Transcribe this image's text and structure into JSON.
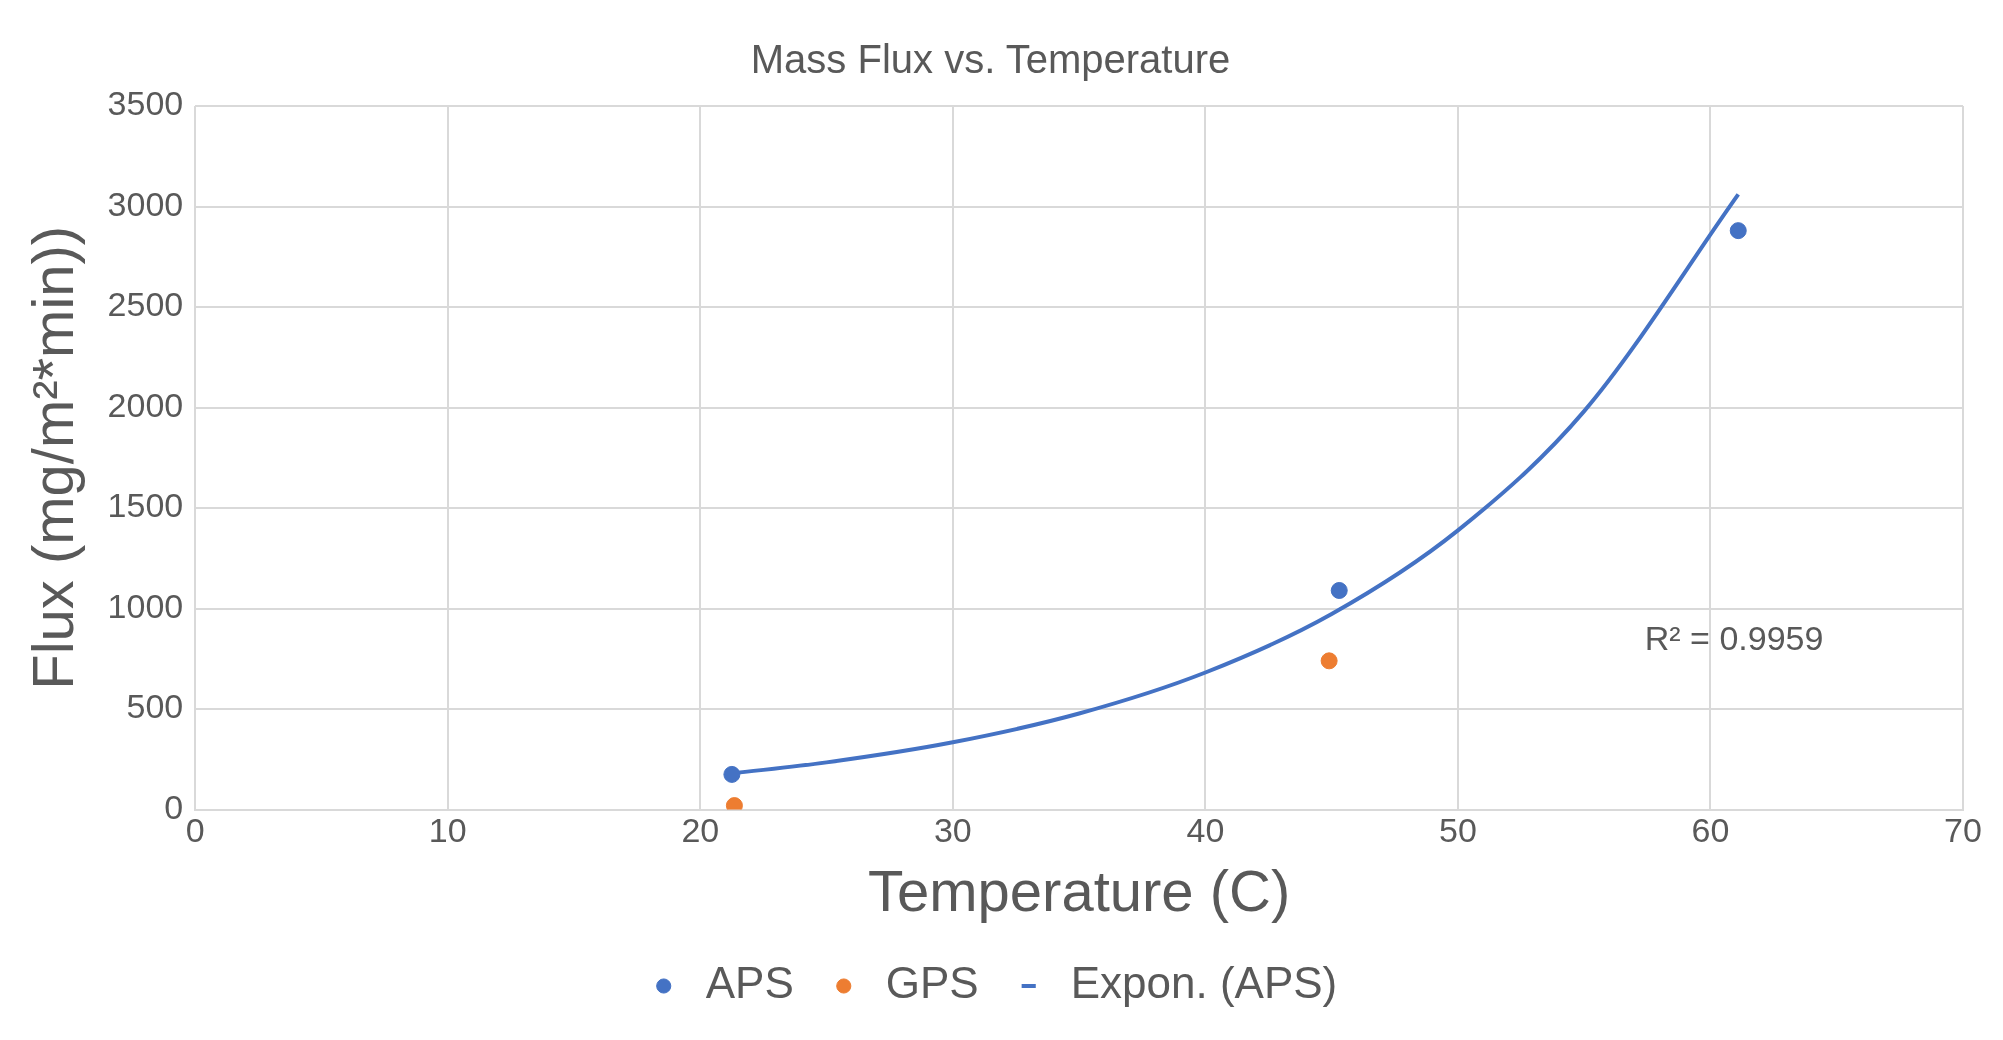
{
  "chart_data": {
    "type": "scatter",
    "title": "Mass Flux vs. Temperature",
    "xlabel": "Temperature (C)",
    "ylabel": "Flux (mg/m²*min))",
    "series": [
      {
        "name": "APS",
        "color": "#4472c4",
        "x": [
          21.25,
          45.3,
          61.1
        ],
        "values": [
          175,
          1090,
          2880
        ]
      },
      {
        "name": "GPS",
        "color": "#ed7d31",
        "x": [
          21.35,
          44.9
        ],
        "values": [
          20,
          740
        ]
      },
      {
        "name": "Expon. (APS)",
        "type": "line",
        "marker": "none",
        "color": "#4472c4",
        "x": [
          21.25,
          25,
          30,
          35,
          40,
          45,
          50,
          55,
          61.1
        ],
        "values": [
          180,
          235,
          335,
          478,
          682,
          973,
          1389,
          1982,
          3060
        ]
      }
    ],
    "annotations": [
      "R² = 0.9959"
    ],
    "xlim": [
      0,
      70
    ],
    "xticks": [
      0,
      10,
      20,
      30,
      40,
      50,
      60,
      70
    ],
    "ylim": [
      0,
      3500
    ],
    "yticks": [
      0,
      500,
      1000,
      1500,
      2000,
      2500,
      3000,
      3500
    ],
    "grid": true,
    "legend": "bottom",
    "marker": "circle"
  }
}
